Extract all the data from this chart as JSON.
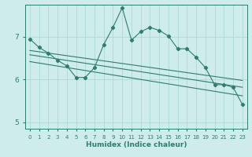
{
  "xlabel": "Humidex (Indice chaleur)",
  "background_color": "#ceecea",
  "grid_color": "#aed8d5",
  "line_color": "#2e7d6e",
  "x_values": [
    0,
    1,
    2,
    3,
    4,
    5,
    6,
    7,
    8,
    9,
    10,
    11,
    12,
    13,
    14,
    15,
    16,
    17,
    18,
    19,
    20,
    21,
    22,
    23
  ],
  "y_main": [
    6.95,
    6.75,
    6.62,
    6.45,
    6.32,
    6.05,
    6.05,
    6.28,
    6.82,
    7.22,
    7.68,
    6.92,
    7.12,
    7.22,
    7.15,
    7.02,
    6.72,
    6.72,
    6.52,
    6.28,
    5.88,
    5.88,
    5.82,
    5.42
  ],
  "y_line1_start": 6.68,
  "y_line1_end": 5.98,
  "y_line2_start": 6.58,
  "y_line2_end": 5.82,
  "y_line3_start": 6.42,
  "y_line3_end": 5.62,
  "xlim": [
    -0.5,
    23.5
  ],
  "ylim": [
    4.85,
    7.75
  ],
  "yticks": [
    5,
    6,
    7
  ],
  "xticks": [
    0,
    1,
    2,
    3,
    4,
    5,
    6,
    7,
    8,
    9,
    10,
    11,
    12,
    13,
    14,
    15,
    16,
    17,
    18,
    19,
    20,
    21,
    22,
    23
  ]
}
